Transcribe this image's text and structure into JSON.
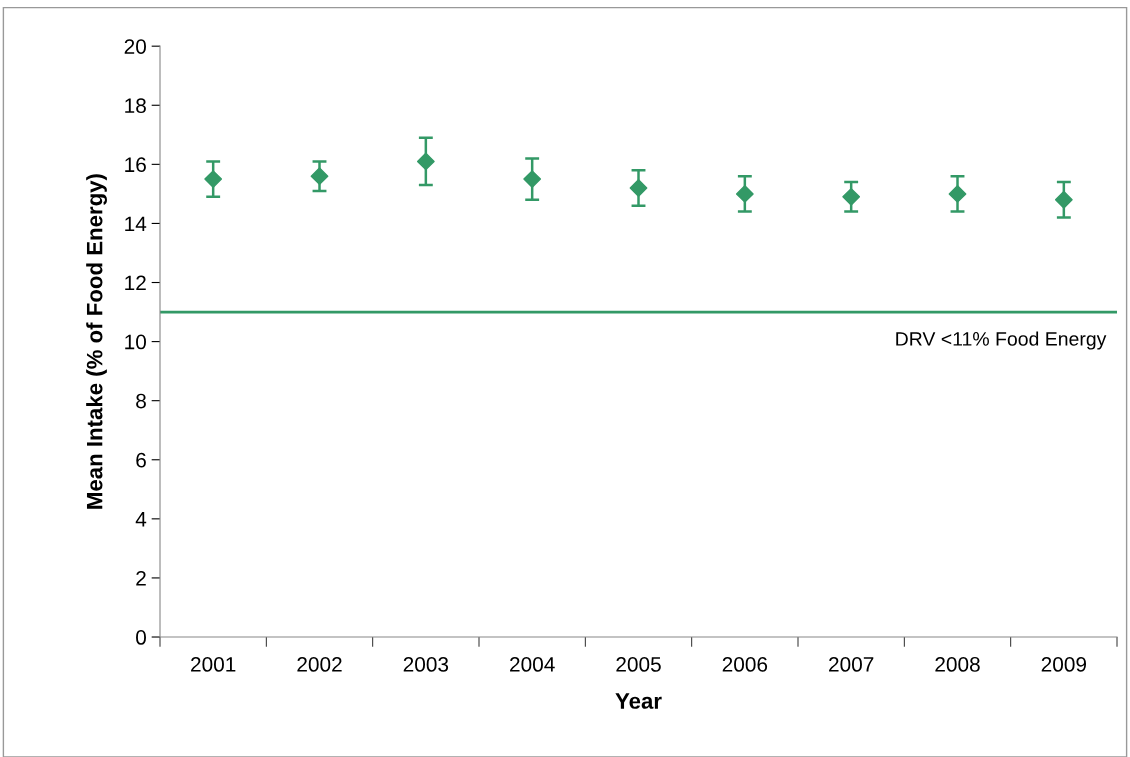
{
  "chart_data": {
    "type": "scatter",
    "xlabel": "Year",
    "ylabel": "Mean Intake (% of Food Energy)",
    "categories": [
      "2001",
      "2002",
      "2003",
      "2004",
      "2005",
      "2006",
      "2007",
      "2008",
      "2009"
    ],
    "series": [
      {
        "color": "#339966",
        "values": [
          15.5,
          15.6,
          16.1,
          15.5,
          15.2,
          15.0,
          14.9,
          15.0,
          14.8
        ],
        "errors": [
          [
            14.9,
            16.1
          ],
          [
            15.1,
            16.1
          ],
          [
            15.3,
            16.9
          ],
          [
            14.8,
            16.2
          ],
          [
            14.6,
            15.8
          ],
          [
            14.4,
            15.6
          ],
          [
            14.4,
            15.4
          ],
          [
            14.4,
            15.6
          ],
          [
            14.2,
            15.4
          ]
        ]
      }
    ],
    "marker": "diamond",
    "ylim": [
      0,
      20
    ],
    "yticks": [
      0,
      2,
      4,
      6,
      8,
      10,
      12,
      14,
      16,
      18,
      20
    ],
    "ref_lines": [
      {
        "axis": "y",
        "value": 11,
        "label": "DRV <11% Food Energy",
        "color": "#339966"
      }
    ],
    "grid": false,
    "legend": false
  }
}
